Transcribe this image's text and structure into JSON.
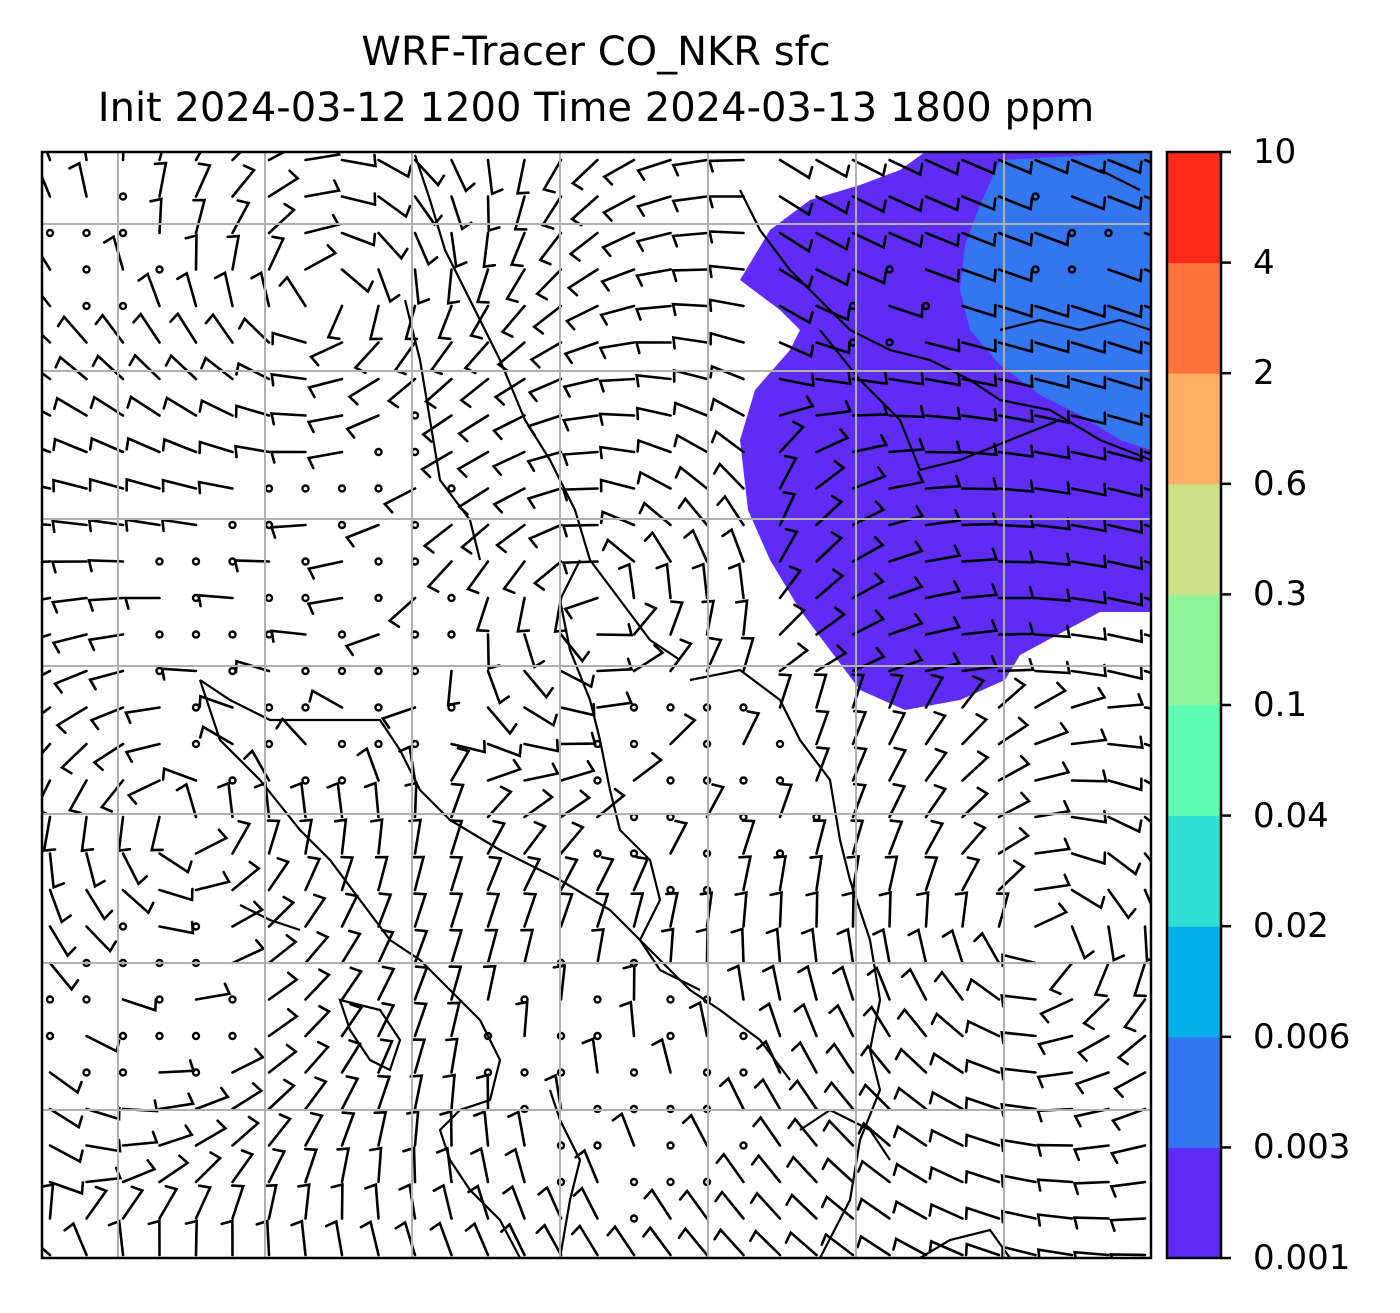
{
  "title": {
    "line1": "WRF-Tracer CO_NKR sfc",
    "line2": "Init 2024-03-12 1200 Time 2024-03-13 1800 ppm"
  },
  "map": {
    "variable": "CO_NKR",
    "level": "sfc",
    "units": "ppm",
    "wind_symbol": "barbs",
    "gridlines": true,
    "basemap": "coastlines-and-borders"
  },
  "colorbar": {
    "levels": [
      "0.001",
      "0.003",
      "0.006",
      "0.02",
      "0.04",
      "0.1",
      "0.3",
      "0.6",
      "2",
      "4",
      "10"
    ],
    "colors": [
      "#5e2cf5",
      "#3376f0",
      "#06b0e8",
      "#2fdfd1",
      "#5efcb5",
      "#8ff59b",
      "#cede86",
      "#ffaf63",
      "#ff723a",
      "#fe2a17"
    ]
  },
  "plume": {
    "location": "upper-right",
    "outer_level_color": "#5e2cf5",
    "inner_level_color": "#3376f0"
  }
}
